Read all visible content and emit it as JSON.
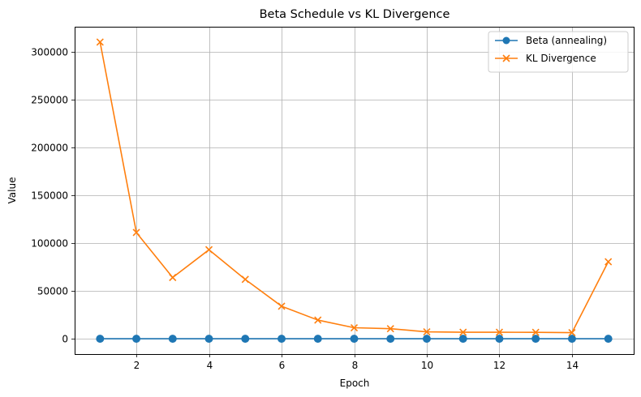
{
  "chart_data": {
    "type": "line",
    "title": "Beta Schedule vs KL Divergence",
    "xlabel": "Epoch",
    "ylabel": "Value",
    "x": [
      1,
      2,
      3,
      4,
      5,
      6,
      7,
      8,
      9,
      10,
      11,
      12,
      13,
      14,
      15
    ],
    "xlim": [
      0.3,
      15.7
    ],
    "ylim": [
      -16000,
      326000
    ],
    "xticks": [
      2,
      4,
      6,
      8,
      10,
      12,
      14
    ],
    "yticks": [
      0,
      50000,
      100000,
      150000,
      200000,
      250000,
      300000
    ],
    "grid": true,
    "legend_position": "top-right",
    "series": [
      {
        "name": "Beta (annealing)",
        "color": "#1f77b4",
        "marker": "circle",
        "values": [
          0.0,
          0.07,
          0.14,
          0.21,
          0.29,
          0.36,
          0.43,
          0.5,
          0.57,
          0.64,
          0.71,
          0.79,
          0.86,
          0.93,
          1.0
        ]
      },
      {
        "name": "KL Divergence",
        "color": "#ff7f0e",
        "marker": "x",
        "values": [
          310000,
          111000,
          64000,
          93000,
          62000,
          34000,
          19500,
          11500,
          10500,
          7200,
          6800,
          6800,
          6700,
          6400,
          80500
        ]
      }
    ]
  }
}
